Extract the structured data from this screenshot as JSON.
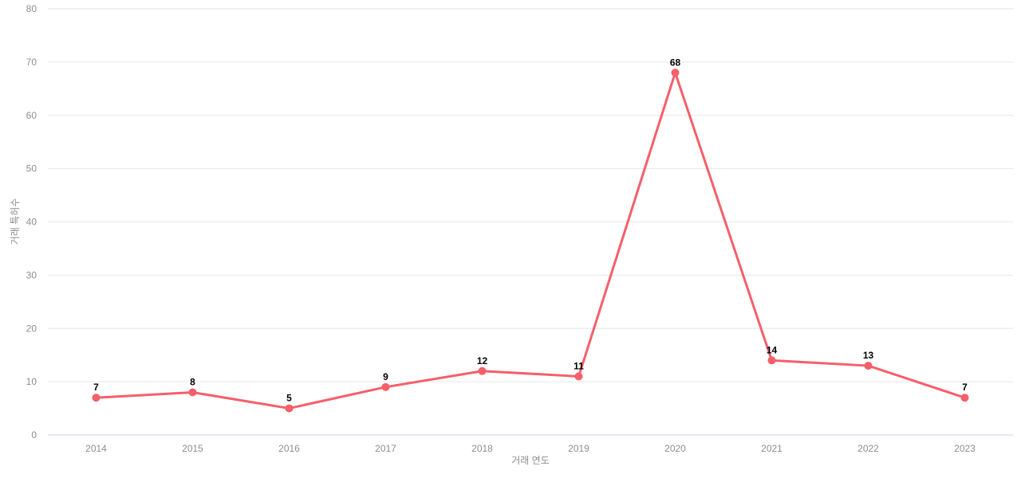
{
  "chart_data": {
    "type": "line",
    "title": "",
    "xlabel": "거래 연도",
    "ylabel": "거래 특허수",
    "categories": [
      "2014",
      "2015",
      "2016",
      "2017",
      "2018",
      "2019",
      "2020",
      "2021",
      "2022",
      "2023"
    ],
    "values": [
      7,
      8,
      5,
      9,
      12,
      11,
      68,
      14,
      13,
      7
    ],
    "series_name": "거래 특허수",
    "ylim": [
      0,
      80
    ],
    "ytick_step": 10,
    "yticks": [
      0,
      10,
      20,
      30,
      40,
      50,
      60,
      70,
      80
    ],
    "grid": true,
    "legend_position": "none",
    "show_data_labels": true,
    "colors": {
      "line": "#f55f69",
      "point": "#f55f69",
      "data_label": "#000000",
      "grid_line": "#e6e6e6",
      "axis_line": "#ccd3ea",
      "tick_label": "#8e8e8e",
      "axis_title": "#8e8e8e",
      "background": "#ffffff"
    }
  }
}
